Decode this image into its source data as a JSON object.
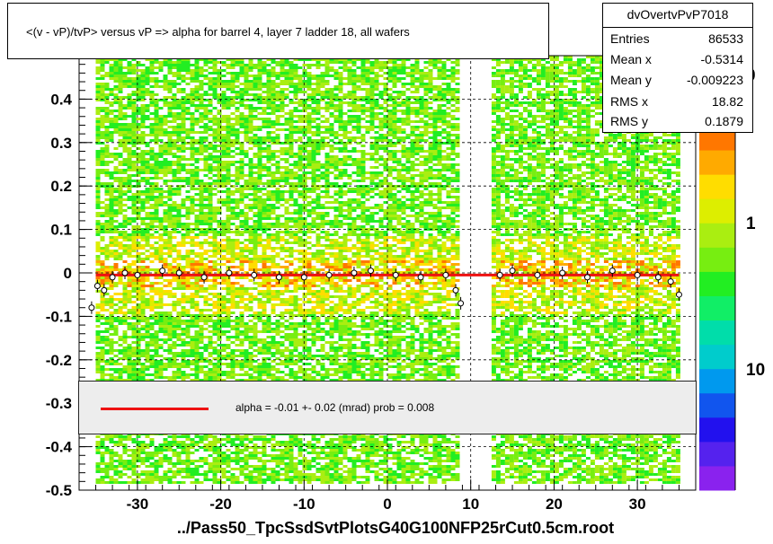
{
  "title": "<(v - vP)/tvP>  versus   vP => alpha for barrel 4, layer 7 ladder 18, all wafers",
  "stats": {
    "name": "dvOvertvPvP7018",
    "rows": [
      {
        "label": "Entries",
        "value": "86533"
      },
      {
        "label": "Mean x",
        "value": "-0.5314"
      },
      {
        "label": "Mean y",
        "value": "-0.009223"
      },
      {
        "label": "RMS x",
        "value": "18.82"
      },
      {
        "label": "RMS y",
        "value": "0.1879"
      }
    ]
  },
  "fit_text": "alpha =   -0.01 +-  0.02 (mrad) prob = 0.008",
  "x_label": "../Pass50_TpcSsdSvtPlotsG40G100NFP25rCut0.5cm.root",
  "colors": {
    "fit_line": "#ee1111",
    "frame": "#000000",
    "grid": "#000000",
    "palette": [
      "#8a22ee",
      "#5522ee",
      "#2211ee",
      "#1155ee",
      "#0099ee",
      "#00cccc",
      "#00ddaa",
      "#11ee66",
      "#22ee22",
      "#77ee11",
      "#aaee11",
      "#ddee00",
      "#ffdd00",
      "#ffaa00",
      "#ff7700"
    ]
  },
  "chart_data": {
    "type": "heatmap",
    "xlim": [
      -37,
      37
    ],
    "ylim": [
      -0.5,
      0.5
    ],
    "x_ticks": [
      -30,
      -20,
      -10,
      0,
      10,
      20,
      30
    ],
    "x_tick_labels": [
      "-30",
      "-20",
      "-10",
      "0",
      "10",
      "20",
      "30"
    ],
    "y_ticks": [
      -0.5,
      -0.4,
      -0.3,
      -0.2,
      -0.1,
      0,
      0.1,
      0.2,
      0.3,
      0.4
    ],
    "y_tick_labels": [
      "-0.5",
      "-0.4",
      "-0.3",
      "-0.2",
      "-0.1",
      "0",
      "0.1",
      "0.2",
      "0.3",
      "0.4"
    ],
    "grid": true,
    "occupied_x_ranges": [
      [
        -35,
        8.5
      ],
      [
        12.5,
        35
      ]
    ],
    "occupied_y_range": [
      -0.48,
      0.5
    ],
    "colorbar_labels": [
      "0",
      "1",
      "10"
    ],
    "colorbar_scale": "log",
    "fit": {
      "alpha_mrad": -0.01,
      "error_mrad": 0.02,
      "prob": 0.008,
      "y_at_x0": -0.005
    },
    "profile_points": [
      {
        "x": -35.5,
        "y": -0.08
      },
      {
        "x": -34.8,
        "y": -0.03
      },
      {
        "x": -34,
        "y": -0.04
      },
      {
        "x": -33,
        "y": -0.01
      },
      {
        "x": -31.5,
        "y": 0.0
      },
      {
        "x": -30,
        "y": -0.005
      },
      {
        "x": -27,
        "y": 0.005
      },
      {
        "x": -25,
        "y": 0.0
      },
      {
        "x": -22,
        "y": -0.01
      },
      {
        "x": -19,
        "y": 0.0
      },
      {
        "x": -16,
        "y": -0.005
      },
      {
        "x": -13,
        "y": -0.01
      },
      {
        "x": -10,
        "y": -0.01
      },
      {
        "x": -7,
        "y": -0.005
      },
      {
        "x": -4,
        "y": 0.0
      },
      {
        "x": -2,
        "y": 0.005
      },
      {
        "x": 1,
        "y": -0.005
      },
      {
        "x": 4,
        "y": -0.01
      },
      {
        "x": 7,
        "y": -0.005
      },
      {
        "x": 8.2,
        "y": -0.04
      },
      {
        "x": 8.8,
        "y": -0.07
      },
      {
        "x": 13.5,
        "y": -0.005
      },
      {
        "x": 15,
        "y": 0.005
      },
      {
        "x": 18,
        "y": -0.005
      },
      {
        "x": 21,
        "y": 0.0
      },
      {
        "x": 24,
        "y": -0.01
      },
      {
        "x": 27,
        "y": 0.005
      },
      {
        "x": 30,
        "y": -0.005
      },
      {
        "x": 32.5,
        "y": -0.01
      },
      {
        "x": 34,
        "y": -0.02
      },
      {
        "x": 35,
        "y": -0.05
      }
    ]
  }
}
